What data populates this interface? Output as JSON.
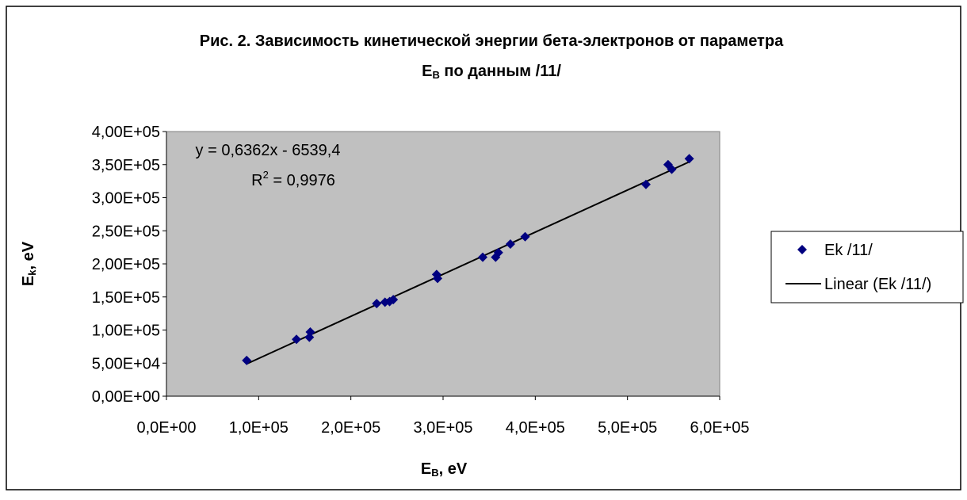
{
  "chart_data": {
    "type": "scatter",
    "title_line1": "Рис. 2. Зависимость кинетической энергии бета-электронов от параметра",
    "title_line2_main": "E",
    "title_line2_sub": "B",
    "title_line2_rest": " по данным /11/",
    "xlabel_main": "E",
    "xlabel_sub": "B",
    "xlabel_rest": ", eV",
    "ylabel_main": "E",
    "ylabel_sub": "k",
    "ylabel_rest": ", eV",
    "xlim": [
      0,
      600000
    ],
    "ylim": [
      0,
      400000
    ],
    "x_ticks": [
      0,
      100000,
      200000,
      300000,
      400000,
      500000,
      600000
    ],
    "x_tick_labels": [
      "0,0E+00",
      "1,0E+05",
      "2,0E+05",
      "3,0E+05",
      "4,0E+05",
      "5,0E+05",
      "6,0E+05"
    ],
    "y_ticks": [
      0,
      50000,
      100000,
      150000,
      200000,
      250000,
      300000,
      350000,
      400000
    ],
    "y_tick_labels": [
      "0,00E+00",
      "5,00E+04",
      "1,00E+05",
      "1,50E+05",
      "2,00E+05",
      "2,50E+05",
      "3,00E+05",
      "3,50E+05",
      "4,00E+05"
    ],
    "plot_background": "#c0c0c0",
    "grid": false,
    "legend_position": "right",
    "series": [
      {
        "name": "Ek /11/",
        "marker": "diamond",
        "color": "#000080",
        "points": [
          [
            87000,
            54000
          ],
          [
            141000,
            86000
          ],
          [
            155000,
            89000
          ],
          [
            156000,
            97000
          ],
          [
            228000,
            140000
          ],
          [
            237000,
            142000
          ],
          [
            242000,
            143000
          ],
          [
            246000,
            146000
          ],
          [
            293000,
            184000
          ],
          [
            294000,
            178000
          ],
          [
            343000,
            210000
          ],
          [
            357000,
            210000
          ],
          [
            360000,
            217000
          ],
          [
            373000,
            230000
          ],
          [
            389000,
            241000
          ],
          [
            520000,
            320000
          ],
          [
            544000,
            350000
          ],
          [
            548000,
            343000
          ],
          [
            567000,
            359000
          ]
        ]
      }
    ],
    "trendline": {
      "name": "Linear (Ek /11/)",
      "slope": 0.6362,
      "intercept": -6539.4,
      "x_range": [
        87000,
        567000
      ],
      "color": "#000000"
    },
    "annotation_equation": "y = 0,6362x - 6539,4",
    "annotation_r2_prefix": "R",
    "annotation_r2_sup": "2",
    "annotation_r2_rest": " = 0,9976"
  }
}
